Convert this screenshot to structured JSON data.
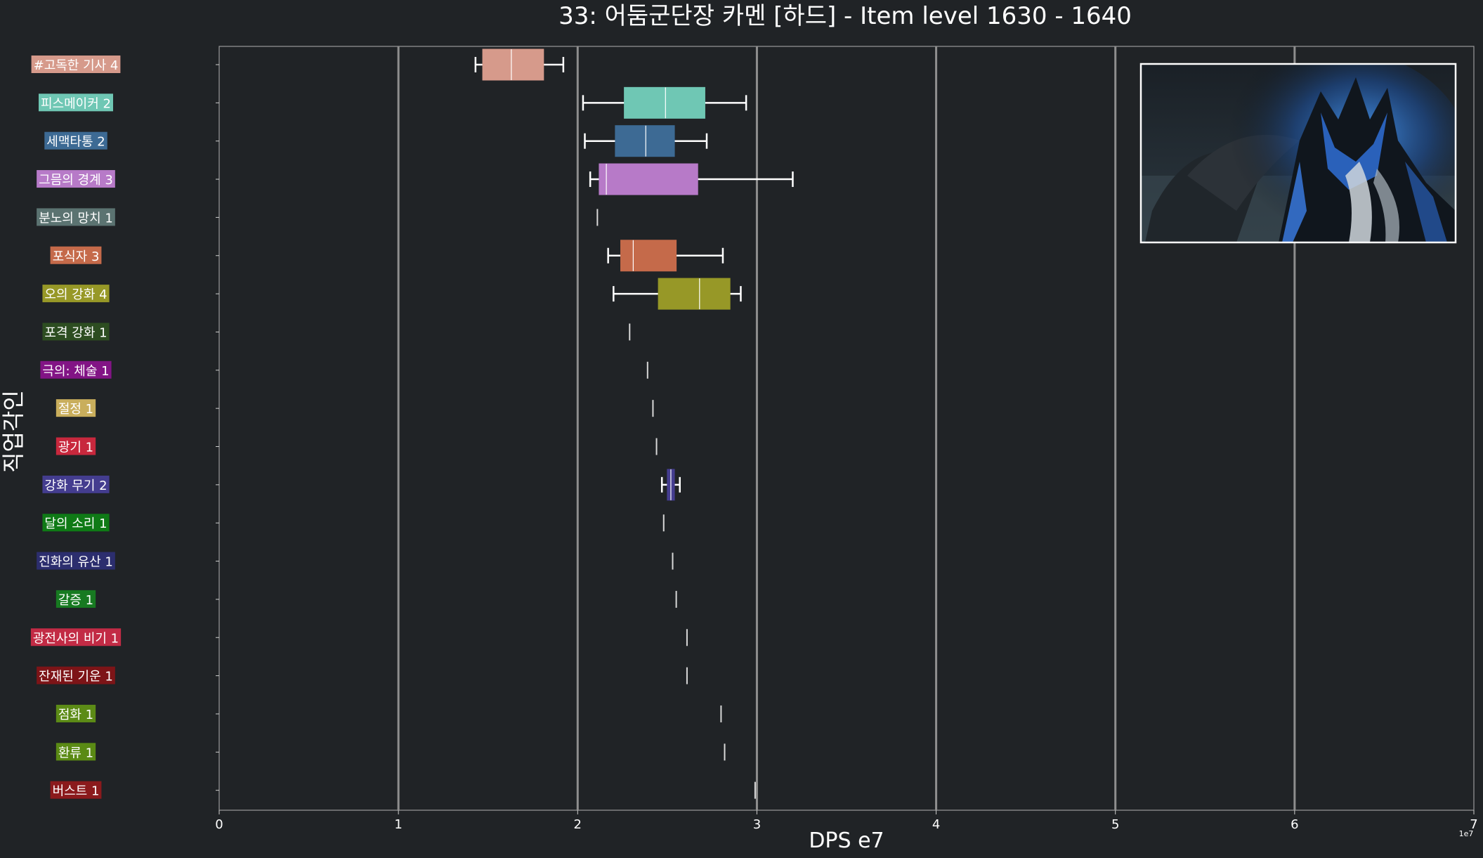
{
  "chart_data": {
    "type": "box",
    "title": "33: 어둠군단장 카멘 [하드] - Item level 1630 - 1640",
    "xlabel": "DPS e7",
    "ylabel": "직업각인",
    "x_scale_note": "1e7",
    "xlim": [
      0,
      7
    ],
    "xticks": [
      "0",
      "1",
      "2",
      "3",
      "4",
      "5",
      "6",
      "7"
    ],
    "grid": "vertical",
    "inset_image": "boss-portrait",
    "series": [
      {
        "label": "#고독한 기사 4",
        "color": "#d69a8b",
        "whisker_low": 1.43,
        "q1": 1.47,
        "median": 1.63,
        "q3": 1.81,
        "whisker_high": 1.92
      },
      {
        "label": "피스메이커 2",
        "color": "#6fc7b4",
        "whisker_low": 2.03,
        "q1": 2.26,
        "median": 2.49,
        "q3": 2.71,
        "whisker_high": 2.94
      },
      {
        "label": "세맥타통 2",
        "color": "#3d6a94",
        "whisker_low": 2.04,
        "q1": 2.21,
        "median": 2.38,
        "q3": 2.54,
        "whisker_high": 2.72
      },
      {
        "label": "그믐의 경계 3",
        "color": "#b77ac8",
        "whisker_low": 2.07,
        "q1": 2.12,
        "median": 2.16,
        "q3": 2.67,
        "whisker_high": 3.2
      },
      {
        "label": "분노의 망치 1",
        "color": "#5b7371",
        "whisker_low": 2.11,
        "q1": 2.11,
        "median": 2.11,
        "q3": 2.11,
        "whisker_high": 2.11
      },
      {
        "label": "포식자 3",
        "color": "#c56a4a",
        "whisker_low": 2.17,
        "q1": 2.24,
        "median": 2.31,
        "q3": 2.55,
        "whisker_high": 2.81
      },
      {
        "label": "오의 강화 4",
        "color": "#979827",
        "whisker_low": 2.2,
        "q1": 2.45,
        "median": 2.68,
        "q3": 2.85,
        "whisker_high": 2.91
      },
      {
        "label": "포격 강화 1",
        "color": "#2d4d21",
        "whisker_low": 2.29,
        "q1": 2.29,
        "median": 2.29,
        "q3": 2.29,
        "whisker_high": 2.29
      },
      {
        "label": "극의: 체술 1",
        "color": "#821485",
        "whisker_low": 2.39,
        "q1": 2.39,
        "median": 2.39,
        "q3": 2.39,
        "whisker_high": 2.39
      },
      {
        "label": "절정 1",
        "color": "#c9ae5c",
        "whisker_low": 2.42,
        "q1": 2.42,
        "median": 2.42,
        "q3": 2.42,
        "whisker_high": 2.42
      },
      {
        "label": "광기 1",
        "color": "#c8283d",
        "whisker_low": 2.44,
        "q1": 2.44,
        "median": 2.44,
        "q3": 2.44,
        "whisker_high": 2.44
      },
      {
        "label": "강화 무기 2",
        "color": "#443d8f",
        "whisker_low": 2.47,
        "q1": 2.5,
        "median": 2.52,
        "q3": 2.54,
        "whisker_high": 2.57
      },
      {
        "label": "달의 소리 1",
        "color": "#0f7a16",
        "whisker_low": 2.48,
        "q1": 2.48,
        "median": 2.48,
        "q3": 2.48,
        "whisker_high": 2.48
      },
      {
        "label": "진화의 유산 1",
        "color": "#2c2e6e",
        "whisker_low": 2.53,
        "q1": 2.53,
        "median": 2.53,
        "q3": 2.53,
        "whisker_high": 2.53
      },
      {
        "label": "갈증 1",
        "color": "#177a21",
        "whisker_low": 2.55,
        "q1": 2.55,
        "median": 2.55,
        "q3": 2.55,
        "whisker_high": 2.55
      },
      {
        "label": "광전사의 비기 1",
        "color": "#c22b45",
        "whisker_low": 2.61,
        "q1": 2.61,
        "median": 2.61,
        "q3": 2.61,
        "whisker_high": 2.61
      },
      {
        "label": "잔재된 기운 1",
        "color": "#7d1417",
        "whisker_low": 2.61,
        "q1": 2.61,
        "median": 2.61,
        "q3": 2.61,
        "whisker_high": 2.61
      },
      {
        "label": "점화 1",
        "color": "#5c8b16",
        "whisker_low": 2.8,
        "q1": 2.8,
        "median": 2.8,
        "q3": 2.8,
        "whisker_high": 2.8
      },
      {
        "label": "환류 1",
        "color": "#5a8a14",
        "whisker_low": 2.82,
        "q1": 2.82,
        "median": 2.82,
        "q3": 2.82,
        "whisker_high": 2.82
      },
      {
        "label": "버스트 1",
        "color": "#8b1a1c",
        "whisker_low": 2.99,
        "q1": 2.99,
        "median": 2.99,
        "q3": 2.99,
        "whisker_high": 2.99
      }
    ]
  }
}
